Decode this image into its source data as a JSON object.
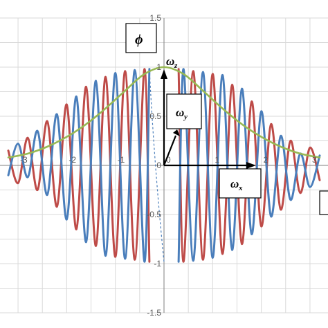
{
  "chart_data": {
    "type": "line",
    "title": "",
    "xlabel": "",
    "ylabel": "",
    "xlim": [
      -3.2,
      3.2
    ],
    "ylim": [
      -1.5,
      1.5
    ],
    "grid": true,
    "legend": "none",
    "x_ticks": [
      "-3",
      "-2",
      "-1",
      "0",
      "1",
      "2",
      "3"
    ],
    "y_ticks": [
      "1.5",
      "1",
      "0.5",
      "0",
      "-0.5",
      "-1",
      "-1.5"
    ],
    "series": [
      {
        "color": "#4a7ebb",
        "role": "oscillation",
        "x": [
          -3.2,
          -3.0,
          -2.8,
          -2.6,
          -2.4,
          -2.2,
          -2.0,
          -1.8,
          -1.6,
          -1.4,
          -1.2,
          -1.0,
          -0.8,
          -0.6,
          -0.4,
          -0.3,
          0.3,
          0.4,
          0.6,
          0.8,
          1.0,
          1.2,
          1.4,
          1.6,
          1.8,
          2.0,
          2.2,
          2.4,
          2.6,
          2.8,
          3.0,
          3.2
        ],
        "y": [
          -0.1,
          0.22,
          -0.12,
          0.35,
          -0.3,
          0.52,
          -0.55,
          0.7,
          -0.78,
          0.86,
          -0.92,
          0.94,
          -0.95,
          0.97,
          -0.98,
          0.98,
          -0.98,
          0.98,
          -0.97,
          0.95,
          -0.94,
          0.92,
          -0.86,
          0.78,
          -0.7,
          0.55,
          -0.52,
          0.3,
          -0.35,
          0.12,
          -0.22,
          0.1
        ]
      },
      {
        "color": "#be4b48",
        "role": "oscillation",
        "x": [
          -3.2,
          -3.0,
          -2.8,
          -2.6,
          -2.4,
          -2.2,
          -2.0,
          -1.8,
          -1.6,
          -1.4,
          -1.2,
          -1.0,
          -0.8,
          -0.6,
          -0.4,
          -0.3,
          0.3,
          0.4,
          0.6,
          0.8,
          1.0,
          1.2,
          1.4,
          1.6,
          1.8,
          2.0,
          2.2,
          2.4,
          2.6,
          2.8,
          3.0,
          3.2
        ],
        "y": [
          0.15,
          -0.18,
          0.28,
          -0.25,
          0.45,
          -0.42,
          0.62,
          -0.65,
          0.8,
          -0.82,
          0.9,
          -0.93,
          0.96,
          -0.96,
          0.98,
          -0.98,
          0.98,
          -0.98,
          0.96,
          -0.96,
          0.93,
          -0.9,
          0.82,
          -0.8,
          0.65,
          -0.62,
          0.42,
          -0.45,
          0.25,
          -0.28,
          0.18,
          -0.15
        ]
      },
      {
        "color": "#98b954",
        "role": "envelope",
        "x": [
          -3.2,
          -2.8,
          -2.4,
          -2.0,
          -1.6,
          -1.2,
          -0.8,
          -0.4,
          0.0,
          0.4,
          0.8,
          1.2,
          1.6,
          2.0,
          2.4,
          2.8,
          3.2
        ],
        "y": [
          0.08,
          0.12,
          0.19,
          0.29,
          0.42,
          0.58,
          0.76,
          0.93,
          1.0,
          0.93,
          0.76,
          0.58,
          0.42,
          0.29,
          0.19,
          0.12,
          0.08
        ]
      },
      {
        "color": "#4bacc6",
        "role": "half-envelope",
        "x": [
          -3.2,
          -2.4,
          -1.6,
          -0.8,
          -0.3,
          0.3,
          0.8,
          1.6,
          2.4,
          3.2
        ],
        "y": [
          0.04,
          0.1,
          0.21,
          0.37,
          0.47,
          0.47,
          0.37,
          0.21,
          0.1,
          0.04
        ]
      },
      {
        "color": "#f79646",
        "role": "negative half-envelope",
        "x": [
          -3.2,
          -2.4,
          -1.6,
          -0.8,
          -0.3,
          0.3,
          0.8,
          1.6,
          2.4,
          3.2
        ],
        "y": [
          -0.04,
          -0.1,
          -0.21,
          -0.37,
          -0.47,
          -0.47,
          -0.37,
          -0.21,
          -0.1,
          -0.04
        ]
      }
    ],
    "annotations": {
      "phi": "ϕ",
      "wz": "ω",
      "wz_sub": "z",
      "wy": "ω",
      "wy_sub": "y",
      "wx": "ω",
      "wx_sub": "x"
    }
  }
}
